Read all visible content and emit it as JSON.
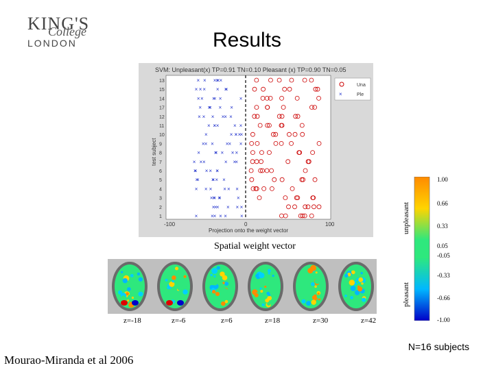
{
  "logo": {
    "kings": "KING'S",
    "college": "College",
    "london": "LONDON"
  },
  "title": "Results",
  "plot": {
    "header": "SVM: Unpleasant(x)  TP=0.91  TN=0.10  Pleasant (x)  TP=0.90  TN=0.05",
    "ylabel": "test subject",
    "subjects": [
      "13",
      "15",
      "14",
      "17",
      "12",
      "11",
      "10",
      "9",
      "8",
      "7",
      "6",
      "5",
      "4",
      "3",
      "2",
      "1"
    ],
    "xtick_left": "-100",
    "xtick_mid": "0",
    "xtick_right": "100",
    "xlabel": "Projection onto the weight vector",
    "legend": [
      "Una",
      "Ple"
    ]
  },
  "colorbar": {
    "labels": [
      "1.00",
      "0.66",
      "0.33",
      "0.05",
      "-0.05",
      "-0.33",
      "-0.66",
      "-1.00"
    ],
    "top_label": "unpleasant",
    "bottom_label": "pleasant"
  },
  "caption": "Spatial weight vector",
  "slices": [
    "z=-18",
    "z=-6",
    "z=6",
    "z=18",
    "z=30",
    "z=42"
  ],
  "n_subjects": "N=16 subjects",
  "citation": "Mourao-Miranda et al 2006"
}
